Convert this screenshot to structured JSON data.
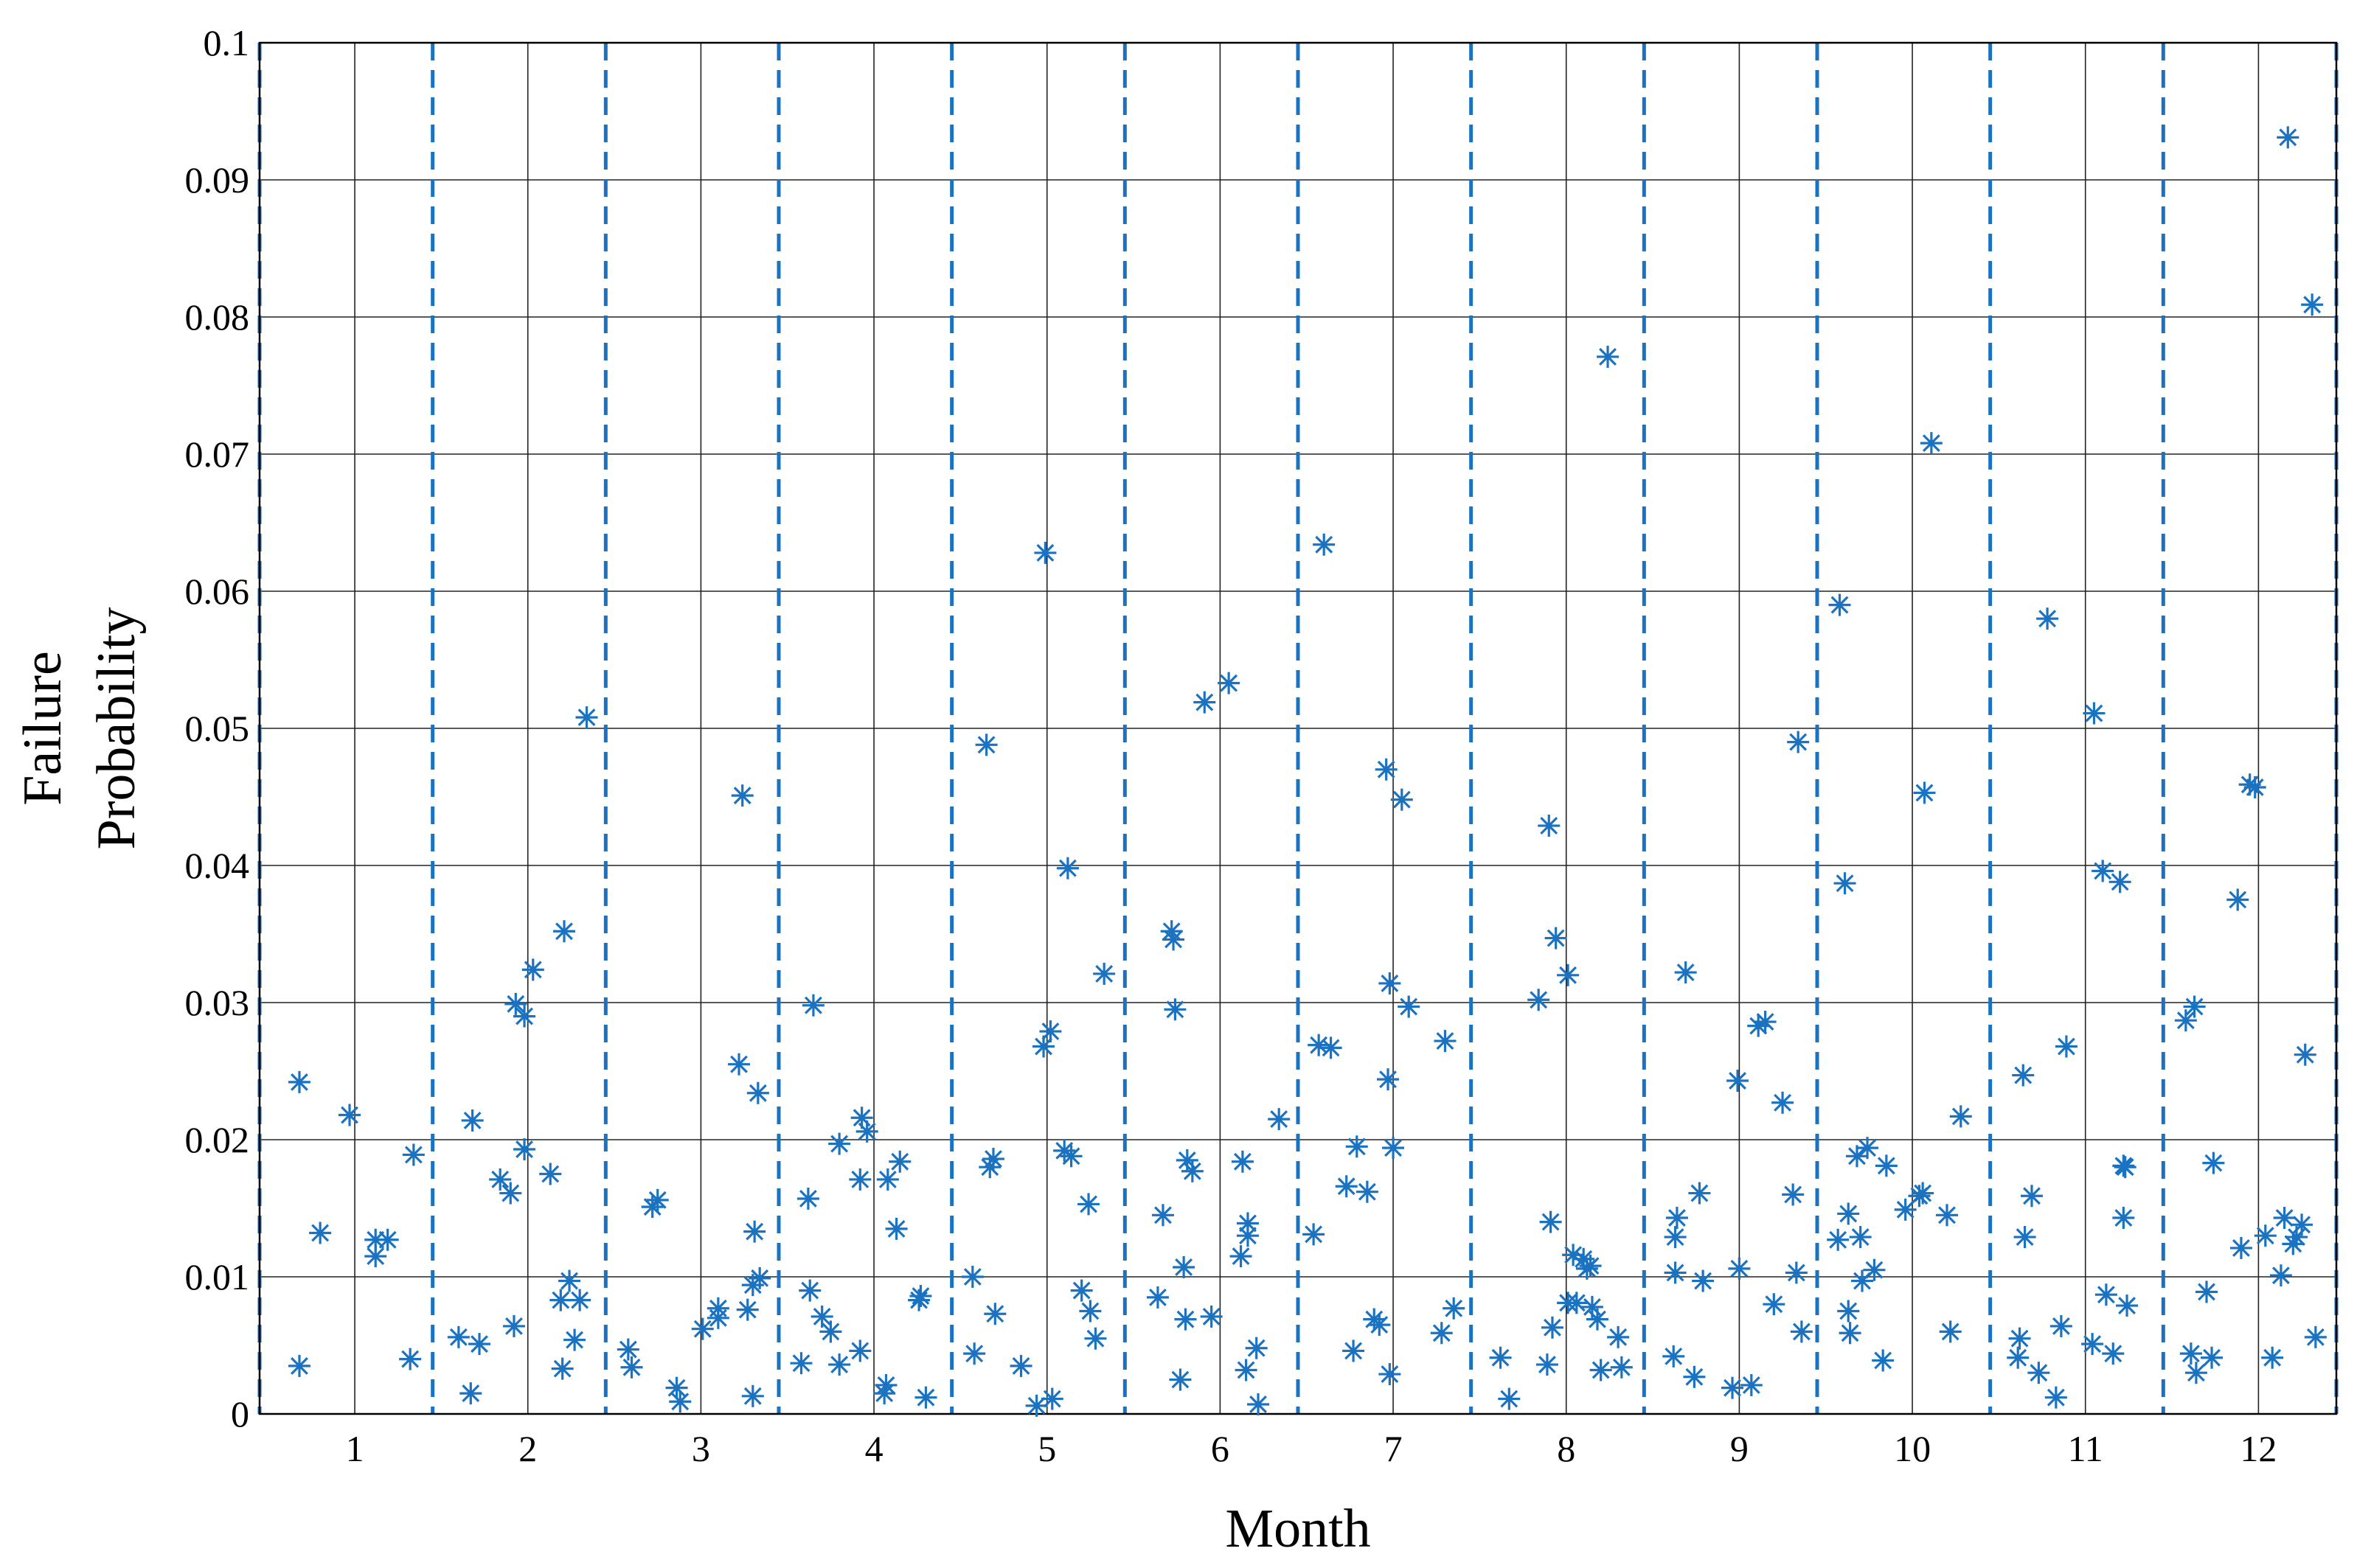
{
  "chart_data": {
    "type": "scatter",
    "xlabel": "Month",
    "ylabel": [
      "Failure",
      "Probability"
    ],
    "xlim": [
      0.45,
      12.45
    ],
    "ylim": [
      0,
      0.1
    ],
    "x_ticks": [
      1,
      2,
      3,
      4,
      5,
      6,
      7,
      8,
      9,
      10,
      11,
      12
    ],
    "y_ticks": [
      0,
      0.01,
      0.02,
      0.03,
      0.04,
      0.05,
      0.06,
      0.07,
      0.08,
      0.09,
      0.1
    ],
    "x_tick_labels": [
      "1",
      "2",
      "3",
      "4",
      "5",
      "6",
      "7",
      "8",
      "9",
      "10",
      "11",
      "12"
    ],
    "y_tick_labels": [
      "0",
      "0.01",
      "0.02",
      "0.03",
      "0.04",
      "0.05",
      "0.06",
      "0.07",
      "0.08",
      "0.09",
      "0.1"
    ],
    "month_separators": [
      0.45,
      1.45,
      2.45,
      3.45,
      4.45,
      5.45,
      6.45,
      7.45,
      8.45,
      9.45,
      10.45,
      11.45,
      12.45
    ],
    "grid": true,
    "marker": "asterisk",
    "color": "#1a72c0",
    "series": [
      {
        "points": [
          [
            0.68,
            0.0242
          ],
          [
            0.68,
            0.0035
          ],
          [
            0.8,
            0.0132
          ],
          [
            0.97,
            0.0218
          ],
          [
            1.12,
            0.0115
          ],
          [
            1.12,
            0.0127
          ],
          [
            1.19,
            0.0127
          ],
          [
            1.32,
            0.004
          ],
          [
            1.34,
            0.0189
          ],
          [
            1.6,
            0.0056
          ],
          [
            1.67,
            0.0015
          ],
          [
            1.68,
            0.0214
          ],
          [
            1.72,
            0.0051
          ],
          [
            1.84,
            0.0171
          ],
          [
            1.9,
            0.0161
          ],
          [
            1.92,
            0.0064
          ],
          [
            1.93,
            0.0299
          ],
          [
            1.98,
            0.0193
          ],
          [
            1.98,
            0.029
          ],
          [
            2.03,
            0.0324
          ],
          [
            2.13,
            0.0175
          ],
          [
            2.19,
            0.0083
          ],
          [
            2.2,
            0.0033
          ],
          [
            2.21,
            0.0352
          ],
          [
            2.24,
            0.0097
          ],
          [
            2.27,
            0.0054
          ],
          [
            2.3,
            0.0083
          ],
          [
            2.34,
            0.0508
          ],
          [
            2.58,
            0.0047
          ],
          [
            2.6,
            0.0034
          ],
          [
            2.72,
            0.0151
          ],
          [
            2.75,
            0.0156
          ],
          [
            2.86,
            0.0019
          ],
          [
            2.88,
            0.0009
          ],
          [
            3.01,
            0.0062
          ],
          [
            3.1,
            0.007
          ],
          [
            3.1,
            0.0077
          ],
          [
            3.22,
            0.0255
          ],
          [
            3.24,
            0.0451
          ],
          [
            3.27,
            0.0076
          ],
          [
            3.3,
            0.0013
          ],
          [
            3.3,
            0.0094
          ],
          [
            3.31,
            0.0133
          ],
          [
            3.33,
            0.0234
          ],
          [
            3.34,
            0.0099
          ],
          [
            3.58,
            0.0037
          ],
          [
            3.62,
            0.0157
          ],
          [
            3.63,
            0.009
          ],
          [
            3.65,
            0.0298
          ],
          [
            3.7,
            0.0071
          ],
          [
            3.75,
            0.006
          ],
          [
            3.8,
            0.0036
          ],
          [
            3.8,
            0.0197
          ],
          [
            3.92,
            0.0046
          ],
          [
            3.92,
            0.0171
          ],
          [
            3.93,
            0.0216
          ],
          [
            3.96,
            0.0206
          ],
          [
            4.06,
            0.0015
          ],
          [
            4.07,
            0.0021
          ],
          [
            4.08,
            0.0171
          ],
          [
            4.13,
            0.0135
          ],
          [
            4.15,
            0.0184
          ],
          [
            4.26,
            0.0083
          ],
          [
            4.27,
            0.0086
          ],
          [
            4.3,
            0.0012
          ],
          [
            4.57,
            0.01
          ],
          [
            4.58,
            0.0044
          ],
          [
            4.65,
            0.0488
          ],
          [
            4.67,
            0.018
          ],
          [
            4.69,
            0.0186
          ],
          [
            4.7,
            0.0073
          ],
          [
            4.85,
            0.0035
          ],
          [
            4.94,
            0.0006
          ],
          [
            4.98,
            0.0268
          ],
          [
            4.99,
            0.0628
          ],
          [
            5.02,
            0.0279
          ],
          [
            5.03,
            0.0011
          ],
          [
            5.1,
            0.0192
          ],
          [
            5.12,
            0.0398
          ],
          [
            5.14,
            0.0188
          ],
          [
            5.2,
            0.009
          ],
          [
            5.24,
            0.0153
          ],
          [
            5.25,
            0.0075
          ],
          [
            5.28,
            0.0055
          ],
          [
            5.33,
            0.0321
          ],
          [
            5.64,
            0.0085
          ],
          [
            5.67,
            0.0145
          ],
          [
            5.72,
            0.0352
          ],
          [
            5.73,
            0.0346
          ],
          [
            5.74,
            0.0295
          ],
          [
            5.77,
            0.0025
          ],
          [
            5.79,
            0.0107
          ],
          [
            5.8,
            0.0069
          ],
          [
            5.81,
            0.0185
          ],
          [
            5.84,
            0.0177
          ],
          [
            5.91,
            0.0519
          ],
          [
            5.95,
            0.0071
          ],
          [
            6.05,
            0.0533
          ],
          [
            6.12,
            0.0115
          ],
          [
            6.13,
            0.0184
          ],
          [
            6.15,
            0.0032
          ],
          [
            6.16,
            0.013
          ],
          [
            6.16,
            0.0139
          ],
          [
            6.21,
            0.0048
          ],
          [
            6.22,
            0.0007
          ],
          [
            6.34,
            0.0215
          ],
          [
            6.54,
            0.0131
          ],
          [
            6.57,
            0.0269
          ],
          [
            6.6,
            0.0634
          ],
          [
            6.64,
            0.0267
          ],
          [
            6.73,
            0.0166
          ],
          [
            6.77,
            0.0046
          ],
          [
            6.79,
            0.0195
          ],
          [
            6.85,
            0.0162
          ],
          [
            6.89,
            0.0069
          ],
          [
            6.92,
            0.0065
          ],
          [
            6.96,
            0.047
          ],
          [
            6.97,
            0.0244
          ],
          [
            6.98,
            0.0029
          ],
          [
            6.98,
            0.0314
          ],
          [
            7.0,
            0.0194
          ],
          [
            7.05,
            0.0448
          ],
          [
            7.09,
            0.0297
          ],
          [
            7.28,
            0.0059
          ],
          [
            7.3,
            0.0272
          ],
          [
            7.35,
            0.0077
          ],
          [
            7.62,
            0.0041
          ],
          [
            7.67,
            0.0011
          ],
          [
            7.84,
            0.0302
          ],
          [
            7.89,
            0.0036
          ],
          [
            7.9,
            0.0429
          ],
          [
            7.92,
            0.0063
          ],
          [
            7.91,
            0.014
          ],
          [
            7.94,
            0.0347
          ],
          [
            8.01,
            0.032
          ],
          [
            8.01,
            0.0081
          ],
          [
            8.04,
            0.0116
          ],
          [
            8.06,
            0.0081
          ],
          [
            8.1,
            0.0113
          ],
          [
            8.12,
            0.0106
          ],
          [
            8.14,
            0.0108
          ],
          [
            8.15,
            0.0078
          ],
          [
            8.18,
            0.0069
          ],
          [
            8.2,
            0.0032
          ],
          [
            8.24,
            0.0771
          ],
          [
            8.3,
            0.0056
          ],
          [
            8.32,
            0.0034
          ],
          [
            8.62,
            0.0042
          ],
          [
            8.63,
            0.0103
          ],
          [
            8.63,
            0.0129
          ],
          [
            8.64,
            0.0143
          ],
          [
            8.69,
            0.0322
          ],
          [
            8.74,
            0.0027
          ],
          [
            8.77,
            0.0161
          ],
          [
            8.79,
            0.0097
          ],
          [
            8.96,
            0.0019
          ],
          [
            8.99,
            0.0243
          ],
          [
            9.0,
            0.0106
          ],
          [
            9.07,
            0.0021
          ],
          [
            9.11,
            0.0283
          ],
          [
            9.15,
            0.0286
          ],
          [
            9.2,
            0.008
          ],
          [
            9.25,
            0.0227
          ],
          [
            9.31,
            0.016
          ],
          [
            9.33,
            0.0103
          ],
          [
            9.34,
            0.049
          ],
          [
            9.36,
            0.006
          ],
          [
            9.57,
            0.0127
          ],
          [
            9.58,
            0.059
          ],
          [
            9.61,
            0.0387
          ],
          [
            9.63,
            0.0075
          ],
          [
            9.63,
            0.0146
          ],
          [
            9.64,
            0.0059
          ],
          [
            9.68,
            0.0188
          ],
          [
            9.7,
            0.0129
          ],
          [
            9.71,
            0.0097
          ],
          [
            9.74,
            0.0194
          ],
          [
            9.78,
            0.0105
          ],
          [
            9.83,
            0.0039
          ],
          [
            9.85,
            0.0181
          ],
          [
            9.96,
            0.0149
          ],
          [
            10.04,
            0.0159
          ],
          [
            10.06,
            0.0161
          ],
          [
            10.07,
            0.0453
          ],
          [
            10.11,
            0.0708
          ],
          [
            10.2,
            0.0145
          ],
          [
            10.22,
            0.006
          ],
          [
            10.28,
            0.0217
          ],
          [
            10.61,
            0.0041
          ],
          [
            10.62,
            0.0055
          ],
          [
            10.64,
            0.0247
          ],
          [
            10.65,
            0.0129
          ],
          [
            10.69,
            0.0159
          ],
          [
            10.73,
            0.003
          ],
          [
            10.78,
            0.058
          ],
          [
            10.83,
            0.0012
          ],
          [
            10.86,
            0.0064
          ],
          [
            10.89,
            0.0268
          ],
          [
            11.04,
            0.0051
          ],
          [
            11.05,
            0.0511
          ],
          [
            11.1,
            0.0396
          ],
          [
            11.12,
            0.0087
          ],
          [
            11.16,
            0.0044
          ],
          [
            11.2,
            0.0388
          ],
          [
            11.22,
            0.0143
          ],
          [
            11.22,
            0.0181
          ],
          [
            11.23,
            0.018
          ],
          [
            11.24,
            0.0079
          ],
          [
            11.58,
            0.0287
          ],
          [
            11.61,
            0.0044
          ],
          [
            11.63,
            0.0297
          ],
          [
            11.64,
            0.003
          ],
          [
            11.7,
            0.0089
          ],
          [
            11.73,
            0.0041
          ],
          [
            11.74,
            0.0183
          ],
          [
            11.88,
            0.0375
          ],
          [
            11.9,
            0.0121
          ],
          [
            11.95,
            0.0459
          ],
          [
            11.98,
            0.0457
          ],
          [
            12.04,
            0.013
          ],
          [
            12.08,
            0.0041
          ],
          [
            12.13,
            0.0101
          ],
          [
            12.15,
            0.0143
          ],
          [
            12.17,
            0.0931
          ],
          [
            12.2,
            0.0124
          ],
          [
            12.22,
            0.0129
          ],
          [
            12.25,
            0.0138
          ],
          [
            12.27,
            0.0262
          ],
          [
            12.31,
            0.0809
          ],
          [
            12.33,
            0.0056
          ]
        ]
      }
    ]
  }
}
